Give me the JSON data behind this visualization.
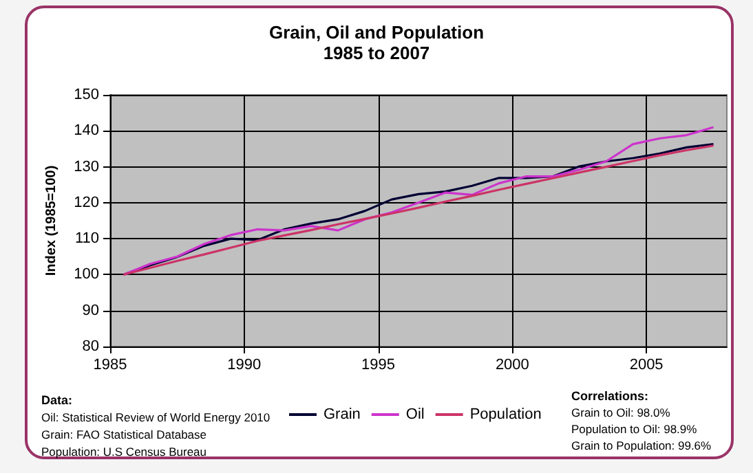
{
  "chart_data": {
    "type": "line",
    "title": "Grain, Oil and Population",
    "subtitle": "1985 to 2007",
    "ylabel": "Index (1985=100)",
    "x": [
      1985.5,
      1986.5,
      1987.5,
      1988.5,
      1989.5,
      1990.5,
      1991.5,
      1992.5,
      1993.5,
      1994.5,
      1995.5,
      1996.5,
      1997.5,
      1998.5,
      1999.5,
      2000.5,
      2001.5,
      2002.5,
      2003.5,
      2004.5,
      2005.5,
      2006.5,
      2007.5
    ],
    "series": [
      {
        "name": "Grain",
        "color": "#000033",
        "values": [
          100,
          102.6,
          104.9,
          108,
          110,
          109.6,
          112.6,
          114.2,
          115.4,
          117.7,
          120.9,
          122.4,
          123.1,
          124.7,
          126.9,
          126.9,
          127.3,
          130.1,
          131.5,
          132.4,
          133.7,
          135.4,
          136.3
        ]
      },
      {
        "name": "Oil",
        "color": "#cc33cc",
        "values": [
          100,
          103,
          105,
          108.5,
          111,
          112.6,
          112.3,
          113.5,
          112.3,
          115.4,
          117.3,
          120,
          122.8,
          122.2,
          125.4,
          127.3,
          127.3,
          129.2,
          131.5,
          136.3,
          137.9,
          138.8,
          141
        ]
      },
      {
        "name": "Population",
        "color": "#cc3366",
        "values": [
          100,
          101.9,
          103.8,
          105.6,
          107.5,
          109.4,
          110.9,
          112.4,
          114,
          115.5,
          117,
          118.6,
          120.3,
          121.9,
          123.6,
          125.2,
          126.8,
          128.4,
          130,
          131.6,
          133.2,
          134.6,
          135.9
        ]
      }
    ],
    "xlim": [
      1985,
      2008
    ],
    "xticks": [
      1985,
      1990,
      1995,
      2000,
      2005
    ],
    "ylim": [
      80,
      150
    ],
    "yticks": [
      80,
      90,
      100,
      110,
      120,
      130,
      140,
      150
    ],
    "grid": true,
    "legend": "bottom",
    "marker": "none",
    "line_style": "solid",
    "annotations": [
      "Data:\nOil: Statistical Review of World Energy 2010\nGrain: FAO Statistical Database\nPopulation: U.S Census Bureau",
      "Correlations:\nGrain to Oil: 98.0%\nPopulation to Oil: 98.9%\nGrain to Population: 99.6%"
    ]
  }
}
